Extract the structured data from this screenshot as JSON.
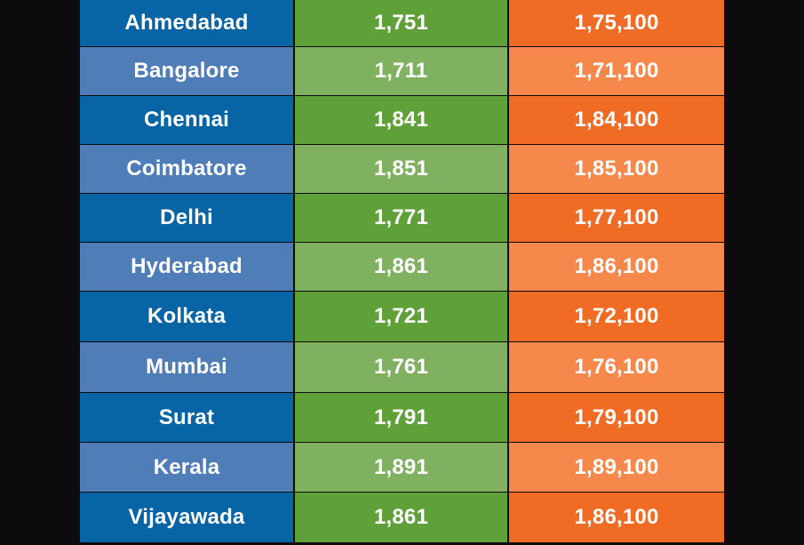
{
  "colors": {
    "background": "#0d0b0d",
    "city_dark": "#0764a5",
    "city_light": "#4f7db8",
    "gram_dark": "#5fa138",
    "gram_light": "#7fb160",
    "tola_dark": "#f06b24",
    "tola_light": "#f5884a",
    "text": "#ffffff"
  },
  "chart_data": {
    "type": "table",
    "rows": [
      {
        "city": "Ahmedabad",
        "col2": "1,751",
        "col3": "1,75,100"
      },
      {
        "city": "Bangalore",
        "col2": "1,711",
        "col3": "1,71,100"
      },
      {
        "city": "Chennai",
        "col2": "1,841",
        "col3": "1,84,100"
      },
      {
        "city": "Coimbatore",
        "col2": "1,851",
        "col3": "1,85,100"
      },
      {
        "city": "Delhi",
        "col2": "1,771",
        "col3": "1,77,100"
      },
      {
        "city": "Hyderabad",
        "col2": "1,861",
        "col3": "1,86,100"
      },
      {
        "city": "Kolkata",
        "col2": "1,721",
        "col3": "1,72,100"
      },
      {
        "city": "Mumbai",
        "col2": "1,761",
        "col3": "1,76,100"
      },
      {
        "city": "Surat",
        "col2": "1,791",
        "col3": "1,79,100"
      },
      {
        "city": "Kerala",
        "col2": "1,891",
        "col3": "1,89,100"
      },
      {
        "city": "Vijayawada",
        "col2": "1,861",
        "col3": "1,86,100"
      }
    ]
  }
}
